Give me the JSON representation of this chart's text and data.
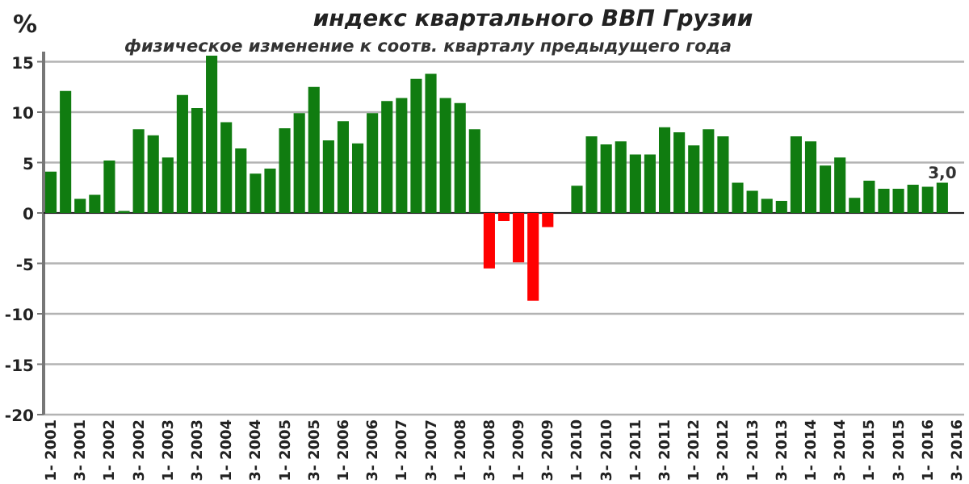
{
  "chart_data": {
    "type": "bar",
    "title": "индекс квартального ВВП Грузии",
    "subtitle": "физическое изменение к соотв. кварталу предыдущего года",
    "ylabel": "%",
    "categories": [
      "1- 2001",
      null,
      "3- 2001",
      null,
      "1- 2002",
      null,
      "3- 2002",
      null,
      "1- 2003",
      null,
      "3- 2003",
      null,
      "1- 2004",
      null,
      "3- 2004",
      null,
      "1- 2005",
      null,
      "3- 2005",
      null,
      "1- 2006",
      null,
      "3- 2006",
      null,
      "1- 2007",
      null,
      "3- 2007",
      null,
      "1- 2008",
      null,
      "3- 2008",
      null,
      "1- 2009",
      null,
      "3- 2009",
      null,
      "1- 2010",
      null,
      "3- 2010",
      null,
      "1- 2011",
      null,
      "3- 2011",
      null,
      "1- 2012",
      null,
      "3- 2012",
      null,
      "1- 2013",
      null,
      "3- 2013",
      null,
      "1- 2014",
      null,
      "3- 2014",
      null,
      "1- 2015",
      null,
      "3- 2015",
      null,
      "1- 2016",
      null,
      "3- 2016"
    ],
    "values": [
      4.1,
      12.1,
      1.4,
      1.8,
      5.2,
      0.2,
      8.3,
      7.7,
      5.5,
      11.7,
      10.4,
      15.6,
      9.0,
      6.4,
      3.9,
      4.4,
      8.4,
      9.9,
      12.5,
      7.2,
      9.1,
      6.9,
      9.9,
      11.1,
      11.4,
      13.3,
      13.8,
      11.4,
      10.9,
      8.3,
      -5.5,
      -0.8,
      -4.9,
      -8.7,
      -1.4,
      null,
      2.7,
      7.6,
      6.8,
      7.1,
      5.8,
      5.8,
      8.5,
      8.0,
      6.7,
      8.3,
      7.6,
      3.0,
      2.2,
      1.4,
      1.2,
      7.6,
      7.1,
      4.7,
      5.5,
      1.5,
      3.2,
      2.4,
      2.4,
      2.8,
      2.6,
      3.0,
      null
    ],
    "colors": [
      "#107c10",
      "#107c10",
      "#107c10",
      "#107c10",
      "#107c10",
      "#107c10",
      "#107c10",
      "#107c10",
      "#107c10",
      "#107c10",
      "#107c10",
      "#107c10",
      "#107c10",
      "#107c10",
      "#107c10",
      "#107c10",
      "#107c10",
      "#107c10",
      "#107c10",
      "#107c10",
      "#107c10",
      "#107c10",
      "#107c10",
      "#107c10",
      "#107c10",
      "#107c10",
      "#107c10",
      "#107c10",
      "#107c10",
      "#107c10",
      "#ff0000",
      "#ff0000",
      "#ff0000",
      "#ff0000",
      "#ff0000",
      null,
      "#107c10",
      "#107c10",
      "#107c10",
      "#107c10",
      "#107c10",
      "#107c10",
      "#107c10",
      "#107c10",
      "#107c10",
      "#107c10",
      "#107c10",
      "#107c10",
      "#107c10",
      "#107c10",
      "#107c10",
      "#107c10",
      "#107c10",
      "#107c10",
      "#107c10",
      "#107c10",
      "#107c10",
      "#107c10",
      "#107c10",
      "#107c10",
      "#107c10",
      "#107c10",
      null
    ],
    "value_labels": [
      null,
      null,
      null,
      null,
      null,
      null,
      null,
      null,
      null,
      null,
      null,
      null,
      null,
      null,
      null,
      null,
      null,
      null,
      null,
      null,
      null,
      null,
      null,
      null,
      null,
      null,
      null,
      null,
      null,
      null,
      null,
      null,
      null,
      null,
      null,
      null,
      null,
      null,
      null,
      null,
      null,
      null,
      null,
      null,
      null,
      null,
      null,
      null,
      null,
      null,
      null,
      null,
      null,
      null,
      null,
      null,
      null,
      null,
      null,
      null,
      null,
      "3,0",
      null
    ],
    "ylim": [
      -20,
      16
    ],
    "yticks": [
      -20,
      -15,
      -10,
      -5,
      0,
      5,
      10,
      15
    ],
    "grid": "y"
  }
}
